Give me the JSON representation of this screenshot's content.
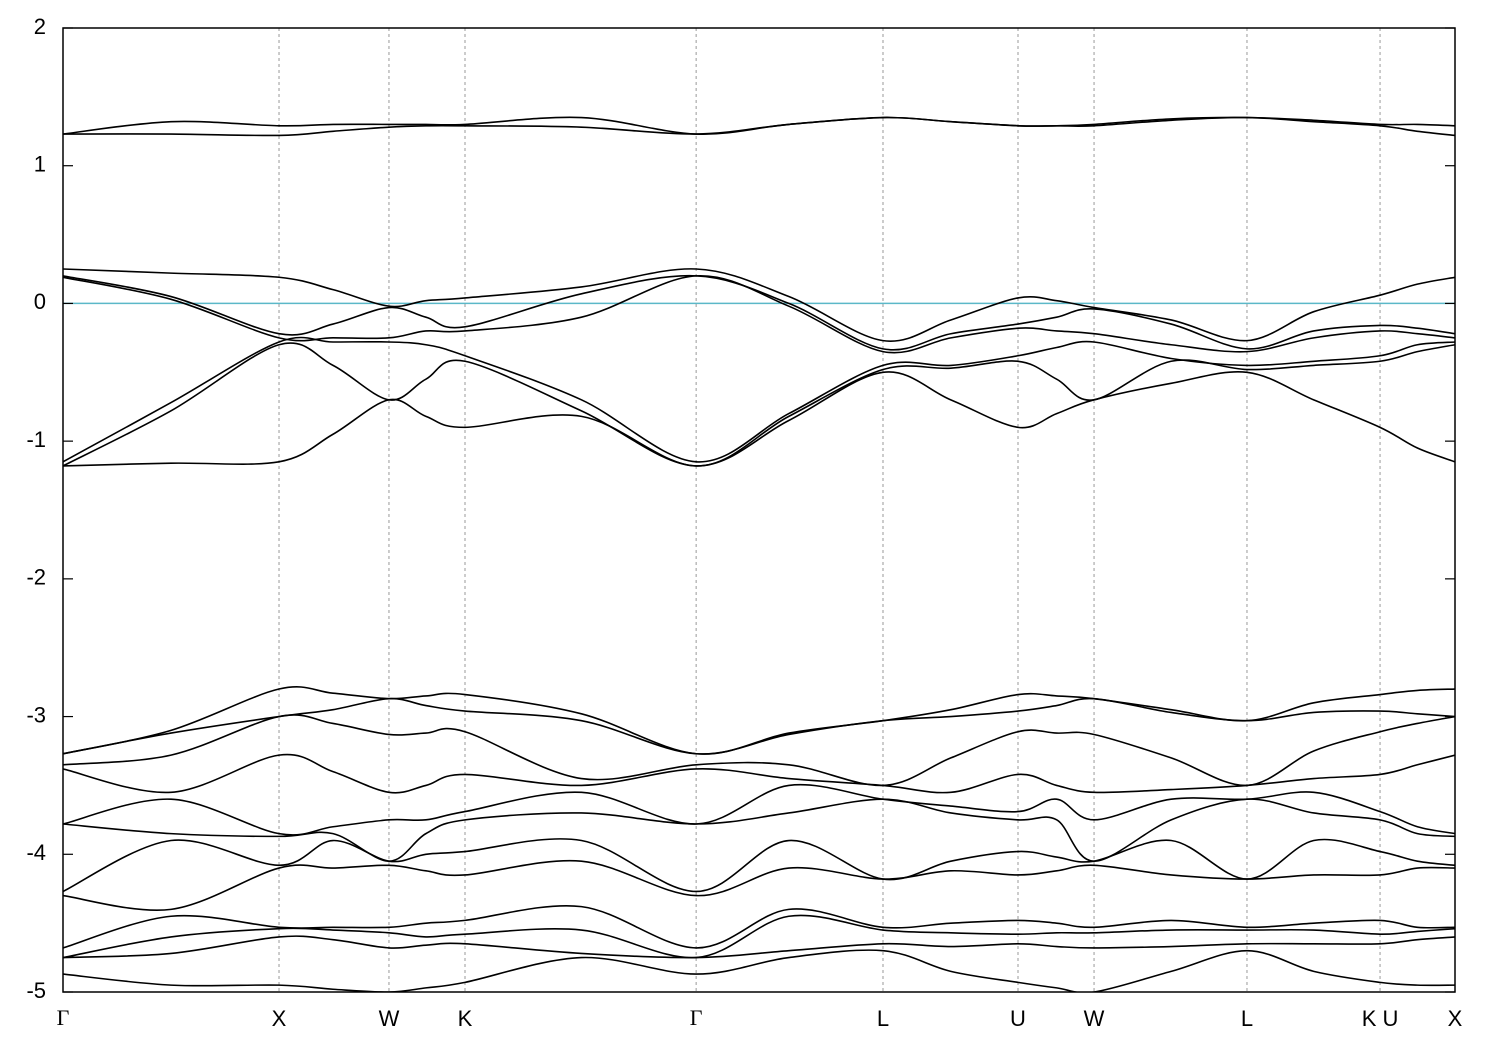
{
  "chart_data": {
    "type": "line",
    "x": [
      0,
      0.5,
      1,
      1.25,
      1.509,
      1.68,
      1.861,
      2.4,
      2.931,
      3.36,
      3.796,
      4.11,
      4.421,
      4.6,
      4.773,
      5.13,
      5.481,
      5.79,
      6.097,
      6.27,
      6.444
    ],
    "xlim": [
      0,
      6.444
    ],
    "xticks": [
      {
        "value": 0,
        "label": "Γ"
      },
      {
        "value": 1,
        "label": "X"
      },
      {
        "value": 1.509,
        "label": "W"
      },
      {
        "value": 1.861,
        "label": "K"
      },
      {
        "value": 2.931,
        "label": "Γ"
      },
      {
        "value": 3.796,
        "label": "L"
      },
      {
        "value": 4.421,
        "label": "U"
      },
      {
        "value": 4.773,
        "label": "W"
      },
      {
        "value": 5.481,
        "label": "L"
      },
      {
        "value": 6.097,
        "label": "K U"
      },
      {
        "value": 6.444,
        "label": "X"
      }
    ],
    "ylim": [
      -5,
      2
    ],
    "yticks": [
      -5,
      -4,
      -3,
      -2,
      -1,
      0,
      1,
      2
    ],
    "xgrid": true,
    "hline": {
      "value": 0,
      "color": "#5bb8c8"
    },
    "series": [
      {
        "color": "#000000",
        "values": [
          1.23,
          1.32,
          1.29,
          1.3,
          1.3,
          1.3,
          1.3,
          1.35,
          1.23,
          1.3,
          1.35,
          1.32,
          1.29,
          1.29,
          1.3,
          1.34,
          1.35,
          1.33,
          1.3,
          1.3,
          1.29
        ]
      },
      {
        "color": "#000000",
        "values": [
          1.23,
          1.23,
          1.22,
          1.25,
          1.28,
          1.29,
          1.29,
          1.28,
          1.23,
          1.3,
          1.35,
          1.32,
          1.29,
          1.29,
          1.29,
          1.33,
          1.35,
          1.32,
          1.29,
          1.25,
          1.22
        ]
      },
      {
        "color": "#000000",
        "values": [
          0.25,
          0.22,
          0.19,
          0.1,
          -0.02,
          0.02,
          0.04,
          0.12,
          0.25,
          0.05,
          -0.27,
          -0.12,
          0.04,
          0.02,
          -0.03,
          -0.12,
          -0.27,
          -0.06,
          0.06,
          0.14,
          0.19
        ]
      },
      {
        "color": "#000000",
        "values": [
          0.2,
          0.05,
          -0.22,
          -0.15,
          -0.03,
          -0.1,
          -0.17,
          0.07,
          0.2,
          0.0,
          -0.33,
          -0.22,
          -0.15,
          -0.1,
          -0.04,
          -0.15,
          -0.33,
          -0.2,
          -0.16,
          -0.18,
          -0.22
        ]
      },
      {
        "color": "#000000",
        "values": [
          0.19,
          0.03,
          -0.25,
          -0.25,
          -0.25,
          -0.2,
          -0.2,
          -0.1,
          0.2,
          -0.02,
          -0.35,
          -0.25,
          -0.18,
          -0.2,
          -0.22,
          -0.3,
          -0.35,
          -0.25,
          -0.2,
          -0.22,
          -0.25
        ]
      },
      {
        "color": "#000000",
        "values": [
          -1.15,
          -0.72,
          -0.28,
          -0.28,
          -0.28,
          -0.3,
          -0.38,
          -0.7,
          -1.15,
          -0.8,
          -0.45,
          -0.45,
          -0.38,
          -0.32,
          -0.28,
          -0.4,
          -0.45,
          -0.42,
          -0.38,
          -0.3,
          -0.28
        ]
      },
      {
        "color": "#000000",
        "values": [
          -1.18,
          -0.78,
          -0.3,
          -0.45,
          -0.7,
          -0.55,
          -0.42,
          -0.78,
          -1.18,
          -0.82,
          -0.48,
          -0.47,
          -0.42,
          -0.55,
          -0.7,
          -0.42,
          -0.48,
          -0.45,
          -0.42,
          -0.35,
          -0.3
        ]
      },
      {
        "color": "#000000",
        "values": [
          -1.18,
          -1.16,
          -1.15,
          -0.95,
          -0.7,
          -0.82,
          -0.9,
          -0.82,
          -1.18,
          -0.85,
          -0.5,
          -0.7,
          -0.9,
          -0.8,
          -0.7,
          -0.58,
          -0.5,
          -0.7,
          -0.9,
          -1.05,
          -1.15
        ]
      },
      {
        "color": "#000000",
        "values": [
          -3.27,
          -3.1,
          -2.8,
          -2.83,
          -2.87,
          -2.85,
          -2.84,
          -2.98,
          -3.27,
          -3.12,
          -3.03,
          -2.95,
          -2.84,
          -2.85,
          -2.87,
          -2.95,
          -3.03,
          -2.9,
          -2.84,
          -2.81,
          -2.8
        ]
      },
      {
        "color": "#000000",
        "values": [
          -3.27,
          -3.12,
          -3.0,
          -2.95,
          -2.87,
          -2.92,
          -2.96,
          -3.03,
          -3.27,
          -3.13,
          -3.03,
          -3.0,
          -2.96,
          -2.92,
          -2.87,
          -2.97,
          -3.03,
          -2.97,
          -2.96,
          -2.98,
          -3.0
        ]
      },
      {
        "color": "#000000",
        "values": [
          -3.35,
          -3.28,
          -3.0,
          -3.05,
          -3.13,
          -3.12,
          -3.11,
          -3.45,
          -3.35,
          -3.35,
          -3.5,
          -3.3,
          -3.11,
          -3.12,
          -3.13,
          -3.3,
          -3.5,
          -3.25,
          -3.11,
          -3.05,
          -3.0
        ]
      },
      {
        "color": "#000000",
        "values": [
          -3.38,
          -3.55,
          -3.28,
          -3.4,
          -3.55,
          -3.5,
          -3.42,
          -3.5,
          -3.38,
          -3.45,
          -3.5,
          -3.55,
          -3.42,
          -3.5,
          -3.55,
          -3.53,
          -3.5,
          -3.45,
          -3.42,
          -3.35,
          -3.28
        ]
      },
      {
        "color": "#000000",
        "values": [
          -3.78,
          -3.6,
          -3.85,
          -3.8,
          -3.75,
          -3.75,
          -3.69,
          -3.55,
          -3.78,
          -3.5,
          -3.6,
          -3.65,
          -3.69,
          -3.6,
          -3.75,
          -3.6,
          -3.6,
          -3.55,
          -3.69,
          -3.8,
          -3.85
        ]
      },
      {
        "color": "#000000",
        "values": [
          -3.78,
          -3.85,
          -3.87,
          -3.85,
          -4.05,
          -3.85,
          -3.75,
          -3.7,
          -3.78,
          -3.7,
          -3.6,
          -3.7,
          -3.75,
          -3.75,
          -4.05,
          -3.75,
          -3.6,
          -3.7,
          -3.75,
          -3.85,
          -3.87
        ]
      },
      {
        "color": "#000000",
        "values": [
          -4.27,
          -3.9,
          -4.08,
          -3.9,
          -4.05,
          -4.0,
          -3.98,
          -3.9,
          -4.27,
          -3.9,
          -4.18,
          -4.05,
          -3.98,
          -4.02,
          -4.05,
          -3.9,
          -4.18,
          -3.9,
          -3.98,
          -4.05,
          -4.08
        ]
      },
      {
        "color": "#000000",
        "values": [
          -4.3,
          -4.4,
          -4.1,
          -4.1,
          -4.08,
          -4.12,
          -4.15,
          -4.05,
          -4.3,
          -4.1,
          -4.18,
          -4.12,
          -4.15,
          -4.12,
          -4.08,
          -4.15,
          -4.18,
          -4.15,
          -4.15,
          -4.1,
          -4.1
        ]
      },
      {
        "color": "#000000",
        "values": [
          -4.68,
          -4.45,
          -4.53,
          -4.53,
          -4.53,
          -4.5,
          -4.48,
          -4.38,
          -4.68,
          -4.4,
          -4.53,
          -4.5,
          -4.48,
          -4.5,
          -4.53,
          -4.48,
          -4.53,
          -4.5,
          -4.48,
          -4.53,
          -4.53
        ]
      },
      {
        "color": "#000000",
        "values": [
          -4.75,
          -4.6,
          -4.54,
          -4.55,
          -4.57,
          -4.6,
          -4.58,
          -4.55,
          -4.75,
          -4.45,
          -4.55,
          -4.57,
          -4.58,
          -4.57,
          -4.57,
          -4.55,
          -4.55,
          -4.55,
          -4.58,
          -4.56,
          -4.54
        ]
      },
      {
        "color": "#000000",
        "values": [
          -4.75,
          -4.72,
          -4.6,
          -4.62,
          -4.68,
          -4.66,
          -4.65,
          -4.72,
          -4.75,
          -4.7,
          -4.65,
          -4.67,
          -4.65,
          -4.67,
          -4.68,
          -4.67,
          -4.65,
          -4.65,
          -4.65,
          -4.62,
          -4.6
        ]
      },
      {
        "color": "#000000",
        "values": [
          -4.87,
          -4.95,
          -4.95,
          -4.98,
          -5.0,
          -4.97,
          -4.93,
          -4.75,
          -4.87,
          -4.75,
          -4.7,
          -4.85,
          -4.93,
          -4.97,
          -5.0,
          -4.85,
          -4.7,
          -4.85,
          -4.93,
          -4.95,
          -4.95
        ]
      }
    ]
  }
}
